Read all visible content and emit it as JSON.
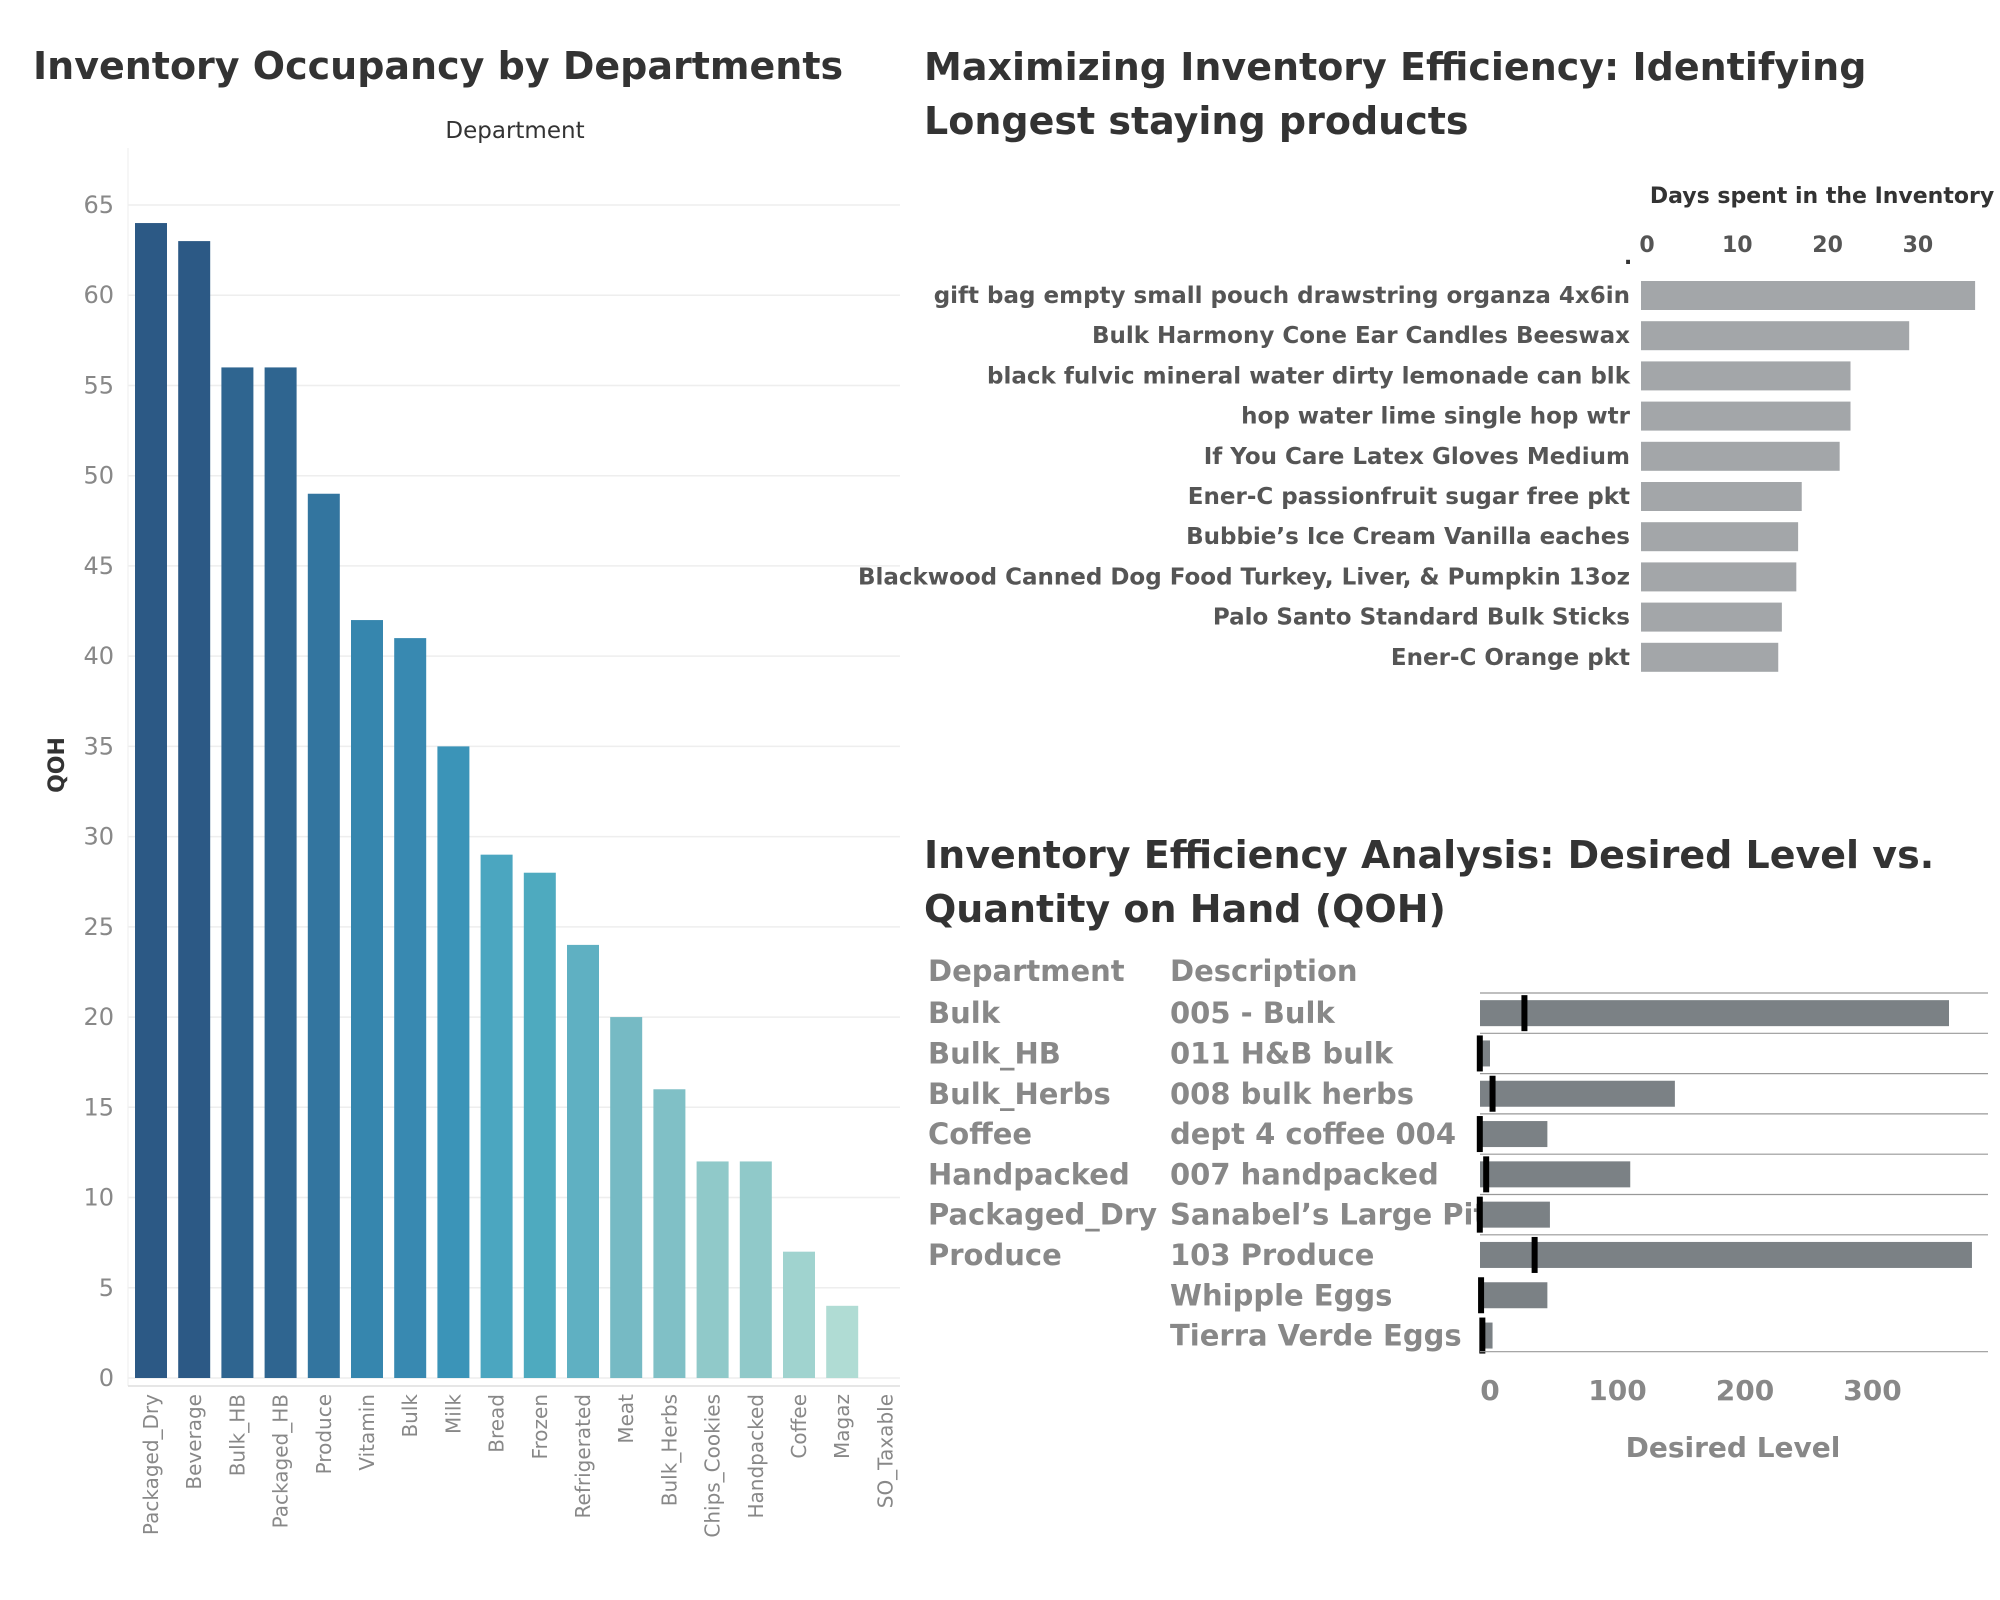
{
  "titles": {
    "occupancy": "Inventory Occupancy by Departments",
    "longest": "Maximizing Inventory Efficiency: Identifying Longest staying products",
    "efficiency": "Inventory Efficiency Analysis: Desired Level vs. Quantity on Hand (QOH)"
  },
  "chart_data": [
    {
      "type": "bar",
      "title": "Inventory Occupancy by Departments",
      "xlabel": "Department",
      "ylabel": "QOH",
      "ylim": [
        0,
        65
      ],
      "yticks": [
        0,
        5,
        10,
        15,
        20,
        25,
        30,
        35,
        40,
        45,
        50,
        55,
        60,
        65
      ],
      "grid": true,
      "categories": [
        "Packaged_Dry",
        "Beverage",
        "Bulk_HB",
        "Packaged_HB",
        "Produce",
        "Vitamin",
        "Bulk",
        "Milk",
        "Bread",
        "Frozen",
        "Refrigerated",
        "Meat",
        "Bulk_Herbs",
        "Chips_Cookies",
        "Handpacked",
        "Coffee",
        "Magaz",
        "SO_Taxable"
      ],
      "values": [
        64,
        63,
        56,
        56,
        49,
        42,
        41,
        35,
        29,
        28,
        24,
        20,
        16,
        12,
        12,
        7,
        4,
        0
      ],
      "colors": [
        "#2c5985",
        "#2c5985",
        "#2f6590",
        "#2f6590",
        "#33759f",
        "#3686ae",
        "#3889b1",
        "#3b94b8",
        "#4ba6c0",
        "#4eaabf",
        "#5fb0c2",
        "#76bac4",
        "#80c0c6",
        "#90c9c9",
        "#90c9c9",
        "#a0d3cf",
        "#b0dcd4",
        "#b0dcd4"
      ]
    },
    {
      "type": "bar",
      "orientation": "horizontal",
      "title": "Maximizing Inventory Efficiency: Identifying Longest staying products",
      "xlabel": "Days spent in the Inventory",
      "xticks": [
        0,
        10,
        20,
        30
      ],
      "axis_mark": ".",
      "xlim": [
        0,
        37
      ],
      "color": "#a3a6a9",
      "categories": [
        "gift bag empty small pouch drawstring organza 4x6in",
        "Bulk Harmony Cone Ear Candles Beeswax",
        "black fulvic mineral water dirty lemonade can blk",
        "hop water lime  single hop wtr",
        "If You Care Latex Gloves Medium",
        "Ener-C passionfruit sugar free pkt",
        "Bubbie’s Ice Cream Vanilla eaches",
        "Blackwood Canned Dog Food Turkey, Liver, & Pumpkin 13oz",
        "Palo Santo Standard Bulk Sticks",
        "Ener-C Orange pkt"
      ],
      "values": [
        37,
        29.7,
        23.2,
        23.2,
        22,
        17.8,
        17.4,
        17.2,
        15.6,
        15.2
      ]
    },
    {
      "type": "bar",
      "orientation": "horizontal",
      "variant": "bullet",
      "title": "Inventory Efficiency Analysis: Desired Level vs. Quantity on Hand (QOH)",
      "xlabel": "Desired Level",
      "xticks": [
        0,
        100,
        200,
        300
      ],
      "xlim": [
        -10,
        400
      ],
      "column_headers": [
        "Department",
        "Description"
      ],
      "departments": [
        "Bulk",
        "Bulk_HB",
        "Bulk_Herbs",
        "Coffee",
        "Handpacked",
        "Packaged_Dry",
        "Produce",
        "",
        ""
      ],
      "categories": [
        "005 - Bulk",
        "011 H&B bulk",
        "008 bulk herbs",
        "dept 4 coffee 004",
        "007 handpacked",
        "Sanabel’s Large Pita..",
        "103 Produce",
        "Whipple Eggs",
        "Tierra Verde Eggs"
      ],
      "series": [
        {
          "name": "Desired Level",
          "values": [
            360,
            0,
            145,
            45,
            110,
            47,
            378,
            45,
            2
          ]
        },
        {
          "name": "QOH",
          "values": [
            27,
            -8,
            2,
            -8,
            -3,
            -8,
            35,
            -7,
            -6
          ]
        }
      ],
      "bar_color": "#7b8185",
      "marker_color": "#000000"
    }
  ]
}
